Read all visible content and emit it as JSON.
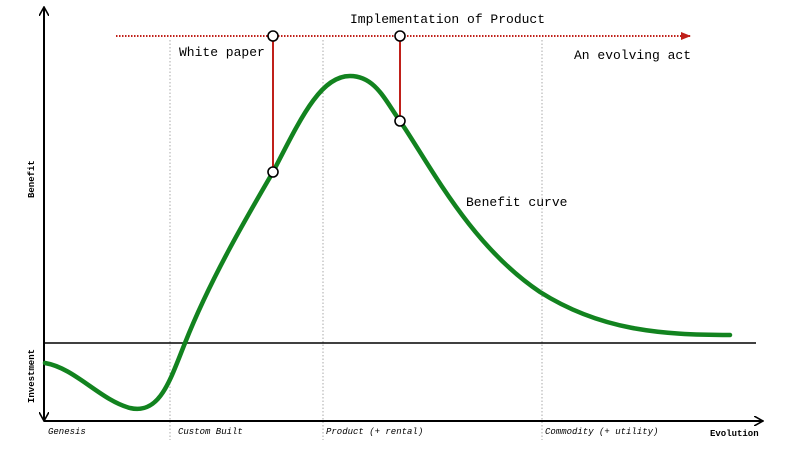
{
  "diagram": {
    "y_axis_top_label": "Benefit",
    "y_axis_bottom_label": "Investment",
    "x_axis_label": "Evolution",
    "stages": [
      "Genesis",
      "Custom Built",
      "Product (+ rental)",
      "Commodity (+ utility)"
    ],
    "timeline_title": "Implementation of Product",
    "timeline_end_label": "An evolving act",
    "marker_labels": [
      "White paper"
    ],
    "curve_label": "Benefit curve",
    "colors": {
      "curve": "#12831f",
      "timeline": "#c0201a",
      "axis": "#000000",
      "stage_divider": "#aaaaaa"
    }
  }
}
